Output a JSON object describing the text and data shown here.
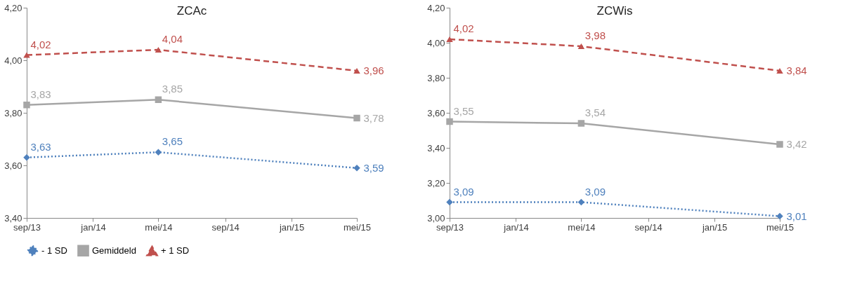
{
  "chart_data": [
    {
      "type": "line",
      "title": "ZCAc",
      "x": [
        "2013-09",
        "2014-05",
        "2015-05"
      ],
      "xlim": [
        "2013-09",
        "2015-05"
      ],
      "xticks": [
        {
          "value": "2013-09",
          "label": "sep/13"
        },
        {
          "value": "2014-01",
          "label": "jan/14"
        },
        {
          "value": "2014-05",
          "label": "mei/14"
        },
        {
          "value": "2014-09",
          "label": "sep/14"
        },
        {
          "value": "2015-01",
          "label": "jan/15"
        },
        {
          "value": "2015-05",
          "label": "mei/15"
        }
      ],
      "ylim": [
        3.4,
        4.2
      ],
      "yticks": [
        {
          "value": 3.4,
          "label": "3,40"
        },
        {
          "value": 3.6,
          "label": "3,60"
        },
        {
          "value": 3.8,
          "label": "3,80"
        },
        {
          "value": 4.0,
          "label": "4,00"
        },
        {
          "value": 4.2,
          "label": "4,20"
        }
      ],
      "grid": false,
      "legend": "bottom",
      "series": [
        {
          "name": "- 1 SD",
          "color": "#4f81bd",
          "marker": "diamond",
          "line_style": "dotted",
          "values": [
            3.63,
            3.65,
            3.59
          ],
          "value_labels": [
            "3,63",
            "3,65",
            "3,59"
          ]
        },
        {
          "name": "Gemiddeld",
          "color": "#a6a6a6",
          "marker": "square",
          "line_style": "solid",
          "values": [
            3.83,
            3.85,
            3.78
          ],
          "value_labels": [
            "3,83",
            "3,85",
            "3,78"
          ]
        },
        {
          "name": "+ 1 SD",
          "color": "#c0504d",
          "marker": "triangle",
          "line_style": "dashed",
          "values": [
            4.02,
            4.04,
            3.96
          ],
          "value_labels": [
            "4,02",
            "4,04",
            "3,96"
          ]
        }
      ]
    },
    {
      "type": "line",
      "title": "ZCWis",
      "x": [
        "2013-09",
        "2014-05",
        "2015-05"
      ],
      "xlim": [
        "2013-09",
        "2015-05"
      ],
      "xticks": [
        {
          "value": "2013-09",
          "label": "sep/13"
        },
        {
          "value": "2014-01",
          "label": "jan/14"
        },
        {
          "value": "2014-05",
          "label": "mei/14"
        },
        {
          "value": "2014-09",
          "label": "sep/14"
        },
        {
          "value": "2015-01",
          "label": "jan/15"
        },
        {
          "value": "2015-05",
          "label": "mei/15"
        }
      ],
      "ylim": [
        3.0,
        4.2
      ],
      "yticks": [
        {
          "value": 3.0,
          "label": "3,00"
        },
        {
          "value": 3.2,
          "label": "3,20"
        },
        {
          "value": 3.4,
          "label": "3,40"
        },
        {
          "value": 3.6,
          "label": "3,60"
        },
        {
          "value": 3.8,
          "label": "3,80"
        },
        {
          "value": 4.0,
          "label": "4,00"
        },
        {
          "value": 4.2,
          "label": "4,20"
        }
      ],
      "grid": false,
      "legend": "bottom",
      "series": [
        {
          "name": "- 1 SD",
          "color": "#4f81bd",
          "marker": "diamond",
          "line_style": "dotted",
          "values": [
            3.09,
            3.09,
            3.01
          ],
          "value_labels": [
            "3,09",
            "3,09",
            "3,01"
          ]
        },
        {
          "name": "Gemiddeld",
          "color": "#a6a6a6",
          "marker": "square",
          "line_style": "solid",
          "values": [
            3.55,
            3.54,
            3.42
          ],
          "value_labels": [
            "3,55",
            "3,54",
            "3,42"
          ]
        },
        {
          "name": "+ 1 SD",
          "color": "#c0504d",
          "marker": "triangle",
          "line_style": "dashed",
          "values": [
            4.02,
            3.98,
            3.84
          ],
          "value_labels": [
            "4,02",
            "3,98",
            "3,84"
          ]
        }
      ]
    }
  ]
}
